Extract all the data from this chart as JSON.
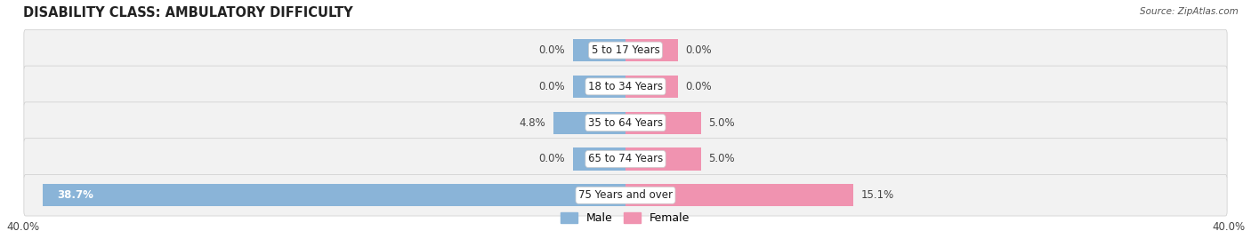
{
  "title": "DISABILITY CLASS: AMBULATORY DIFFICULTY",
  "source": "Source: ZipAtlas.com",
  "categories": [
    "5 to 17 Years",
    "18 to 34 Years",
    "35 to 64 Years",
    "65 to 74 Years",
    "75 Years and over"
  ],
  "male_values": [
    0.0,
    0.0,
    4.8,
    0.0,
    38.7
  ],
  "female_values": [
    0.0,
    0.0,
    5.0,
    5.0,
    15.1
  ],
  "male_color": "#8ab4d8",
  "female_color": "#f093b0",
  "bg_row_color": "#f2f2f2",
  "bg_row_color_alt": "#e8e8e8",
  "axis_max": 40.0,
  "title_fontsize": 10.5,
  "label_fontsize": 8.5,
  "cat_fontsize": 8.5,
  "tick_fontsize": 8.5,
  "legend_fontsize": 9,
  "stub_size": 3.5
}
